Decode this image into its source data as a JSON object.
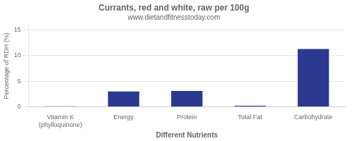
{
  "chart_data": {
    "type": "bar",
    "title": "Currants, red and white, raw per 100g",
    "subtitle": "www.dietandfitnesstoday.com",
    "xlabel": "Different Nutrients",
    "ylabel": "Percentage of RDH (%)",
    "categories": [
      "Vitamin K (phylloquinone)",
      "Energy",
      "Protein",
      "Total Fat",
      "Carbohydrate"
    ],
    "values": [
      0.1,
      3.0,
      3.1,
      0.2,
      11.3
    ],
    "color": "#2b3990",
    "ylim": [
      0,
      16
    ],
    "yticks": [
      0,
      5,
      10,
      15
    ],
    "grid": true
  }
}
